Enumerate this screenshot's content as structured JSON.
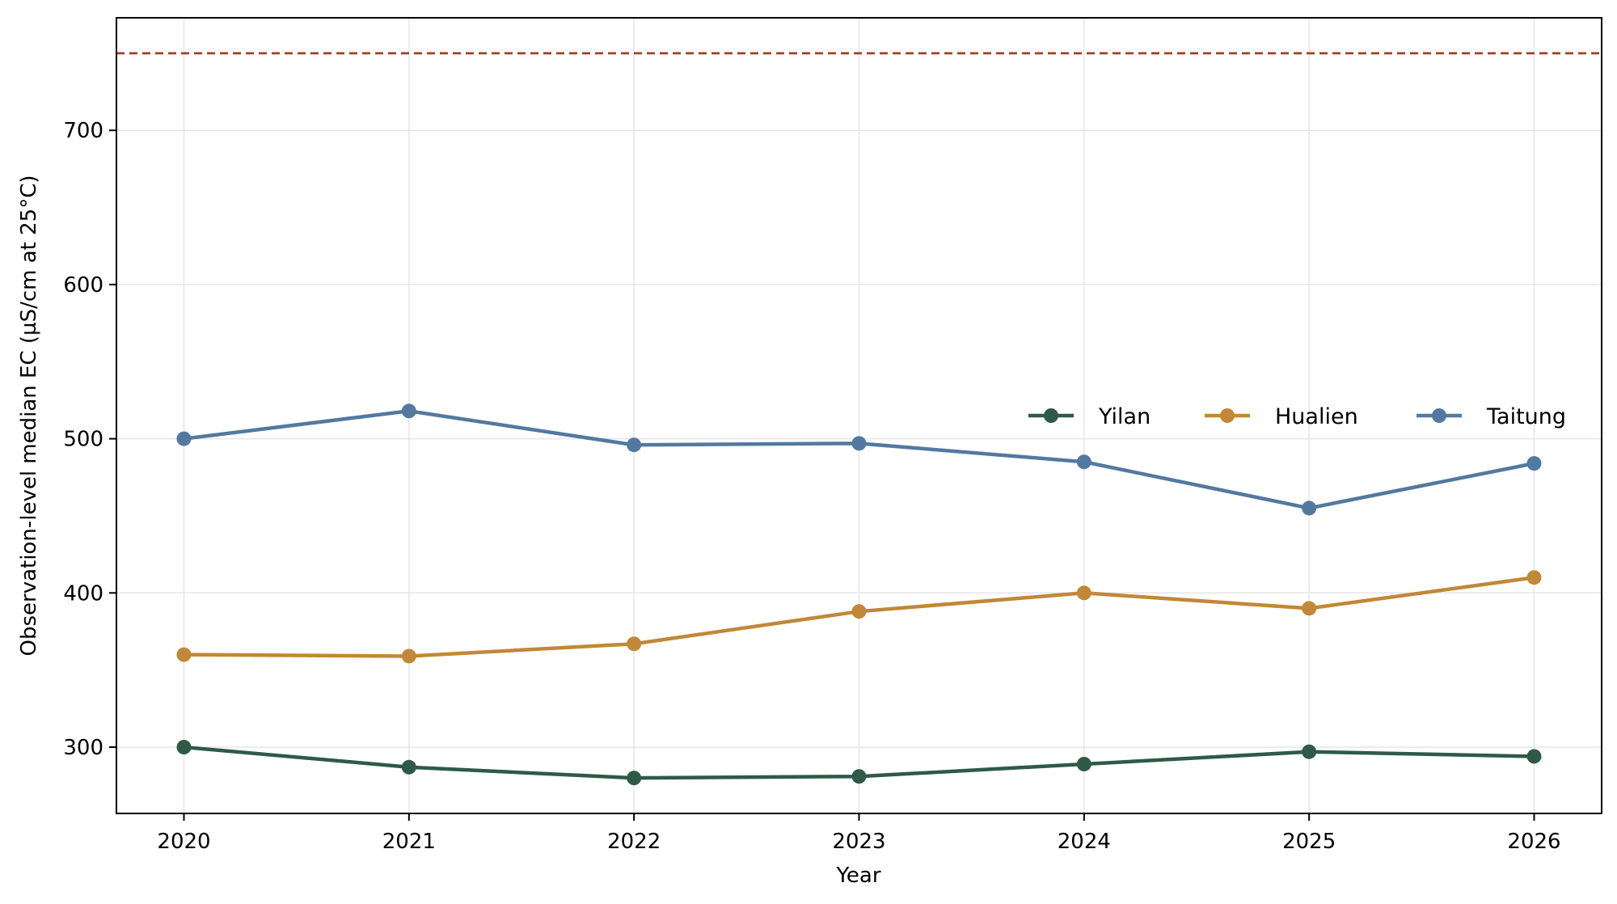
{
  "chart_data": {
    "type": "line",
    "title": "",
    "xlabel": "Year",
    "ylabel": "Observation-level median EC (µS/cm at 25°C)",
    "x": [
      2020,
      2021,
      2022,
      2023,
      2024,
      2025,
      2026
    ],
    "x_tick_labels": [
      "2020",
      "2021",
      "2022",
      "2023",
      "2024",
      "2025",
      "2026"
    ],
    "y_ticks": [
      300,
      400,
      500,
      600,
      700
    ],
    "y_tick_labels": [
      "300",
      "400",
      "500",
      "600",
      "700"
    ],
    "xlim": [
      2019.7,
      2026.3
    ],
    "ylim": [
      257,
      773
    ],
    "grid": true,
    "legend_position": "center-right",
    "reference_line": {
      "y": 750,
      "color": "#a83a2a",
      "style": "dashed"
    },
    "series": [
      {
        "name": "Yilan",
        "color": "#2e5a47",
        "values": [
          300,
          287,
          280,
          281,
          289,
          297,
          294
        ]
      },
      {
        "name": "Hualien",
        "color": "#c08838",
        "values": [
          360,
          359,
          367,
          388,
          400,
          390,
          410
        ]
      },
      {
        "name": "Taitung",
        "color": "#5279a0",
        "values": [
          500,
          518,
          496,
          497,
          485,
          455,
          484
        ]
      }
    ]
  }
}
